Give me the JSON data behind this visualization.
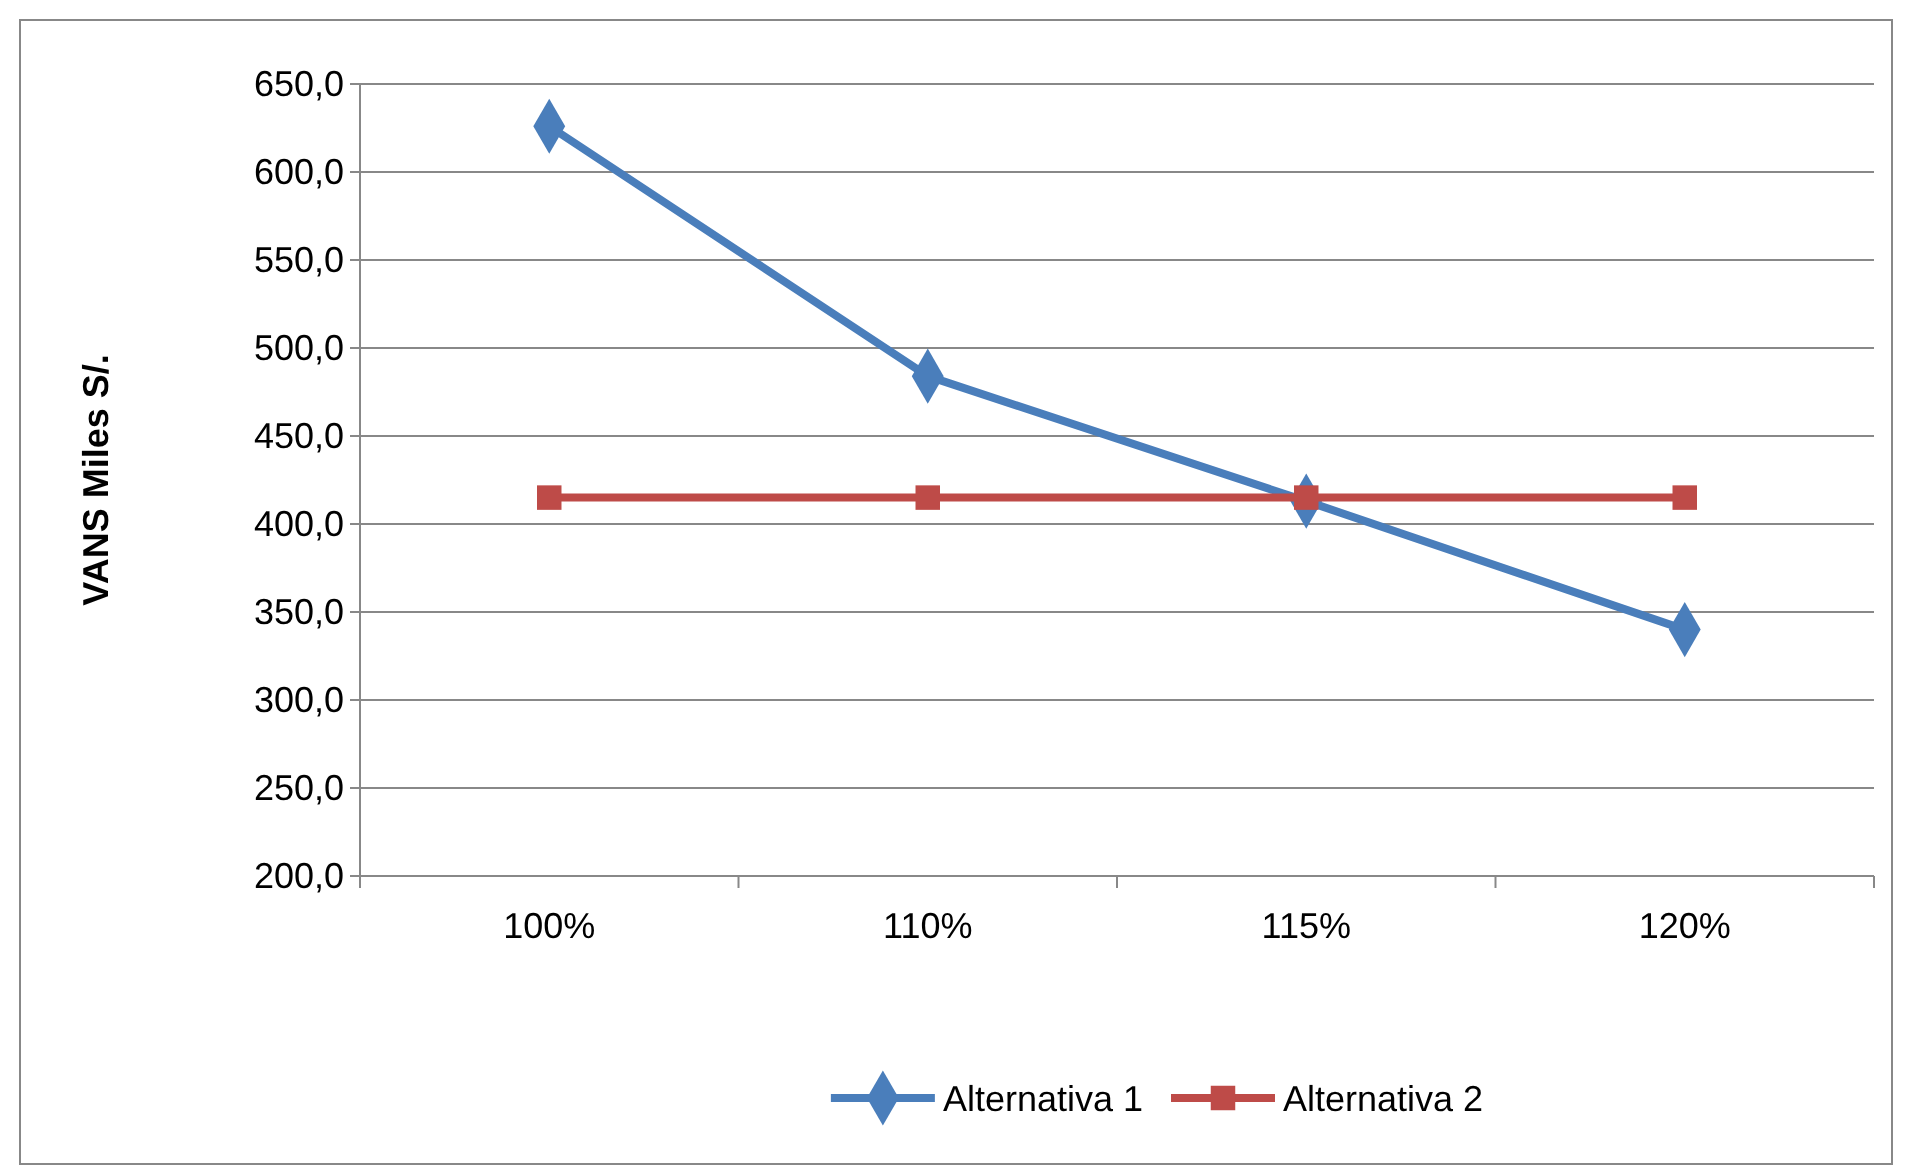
{
  "chart_data": {
    "type": "line",
    "ylabel": "VANS Miles S/.",
    "categories": [
      "100%",
      "110%",
      "115%",
      "120%"
    ],
    "series": [
      {
        "name": "Alternativa 1",
        "color": "#4a7ebb",
        "marker": "diamond",
        "values": [
          626,
          484,
          413,
          340
        ]
      },
      {
        "name": "Alternativa 2",
        "color": "#be4b48",
        "marker": "square",
        "values": [
          415,
          415,
          415,
          415
        ]
      }
    ],
    "ylim": [
      200,
      650
    ],
    "yticks": [
      {
        "value": 200,
        "label": "200,0"
      },
      {
        "value": 250,
        "label": "250,0"
      },
      {
        "value": 300,
        "label": "300,0"
      },
      {
        "value": 350,
        "label": "350,0"
      },
      {
        "value": 400,
        "label": "400,0"
      },
      {
        "value": 450,
        "label": "450,0"
      },
      {
        "value": 500,
        "label": "500,0"
      },
      {
        "value": 550,
        "label": "550,0"
      },
      {
        "value": 600,
        "label": "600,0"
      },
      {
        "value": 650,
        "label": "650,0"
      }
    ],
    "grid": "y",
    "legend": "bottom",
    "line_style": "solid"
  }
}
